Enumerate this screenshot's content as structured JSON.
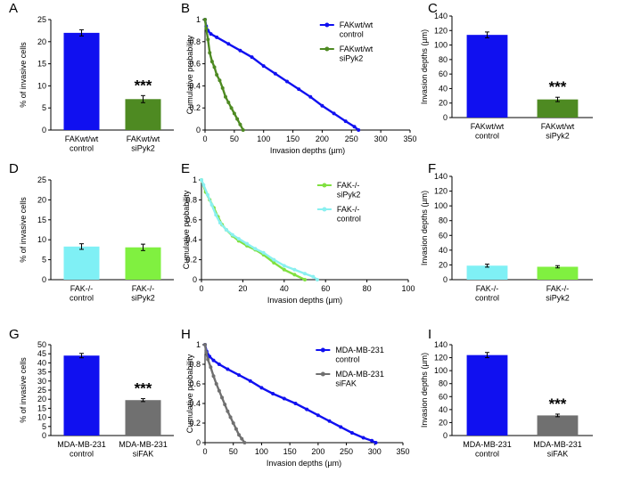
{
  "chart_data": [
    {
      "panel": "A",
      "type": "bar",
      "ylabel": "% of invasive cells",
      "ylim": [
        0,
        25
      ],
      "yticks": [
        0,
        5,
        10,
        15,
        20,
        25
      ],
      "categories": [
        "FAKwt/wt\ncontrol",
        "FAKwt/wt\nsiPyk2"
      ],
      "values": [
        22,
        7
      ],
      "errors": [
        0.7,
        0.8
      ],
      "colors": [
        "#1010f0",
        "#4e8a22"
      ],
      "sig": [
        "",
        "***"
      ]
    },
    {
      "panel": "B",
      "type": "line",
      "xlabel": "Invasion depths (µm)",
      "ylabel": "Cumulative probability",
      "xlim": [
        0,
        350
      ],
      "xticks": [
        0,
        50,
        100,
        150,
        200,
        250,
        300,
        350
      ],
      "ylim": [
        0,
        1
      ],
      "yticks": [
        0,
        0.2,
        0.4,
        0.6,
        0.8,
        1
      ],
      "series": [
        {
          "name": "FAKwt/wt\ncontrol",
          "color": "#1010f0",
          "x": [
            0,
            2,
            5,
            10,
            20,
            40,
            60,
            80,
            100,
            120,
            140,
            160,
            180,
            200,
            220,
            240,
            255,
            262
          ],
          "y": [
            1,
            0.94,
            0.9,
            0.87,
            0.84,
            0.78,
            0.72,
            0.66,
            0.58,
            0.51,
            0.44,
            0.37,
            0.3,
            0.22,
            0.15,
            0.08,
            0.03,
            0
          ]
        },
        {
          "name": "FAKwt/wt\nsiPyk2",
          "color": "#4e8a22",
          "x": [
            0,
            2,
            5,
            8,
            12,
            16,
            20,
            25,
            30,
            35,
            40,
            45,
            50,
            55,
            60,
            65
          ],
          "y": [
            1,
            0.92,
            0.82,
            0.7,
            0.62,
            0.57,
            0.5,
            0.45,
            0.38,
            0.3,
            0.25,
            0.2,
            0.15,
            0.1,
            0.05,
            0
          ]
        }
      ],
      "legend": "top-right"
    },
    {
      "panel": "C",
      "type": "bar",
      "ylabel": "Invasion depths (µm)",
      "ylim": [
        0,
        140
      ],
      "yticks": [
        0,
        20,
        40,
        60,
        80,
        100,
        120,
        140
      ],
      "categories": [
        "FAKwt/wt\ncontrol",
        "FAKwt/wt\nsiPyk2"
      ],
      "values": [
        114,
        25
      ],
      "errors": [
        4,
        3
      ],
      "colors": [
        "#1010f0",
        "#4e8a22"
      ],
      "sig": [
        "",
        "***"
      ]
    },
    {
      "panel": "D",
      "type": "bar",
      "ylabel": "% of invasive cells",
      "ylim": [
        0,
        25
      ],
      "yticks": [
        0,
        5,
        10,
        15,
        20,
        25
      ],
      "categories": [
        "FAK-/-\ncontrol",
        "FAK-/-\nsiPyk2"
      ],
      "values": [
        8.3,
        8.1
      ],
      "errors": [
        0.7,
        0.8
      ],
      "colors": [
        "#7ff0f5",
        "#80f040"
      ],
      "sig": [
        "",
        ""
      ]
    },
    {
      "panel": "E",
      "type": "line",
      "xlabel": "Invasion depths (µm)",
      "ylabel": "Cumulative probability",
      "xlim": [
        0,
        100
      ],
      "xticks": [
        0,
        20,
        40,
        60,
        80,
        100
      ],
      "ylim": [
        0,
        1
      ],
      "yticks": [
        0,
        0.2,
        0.4,
        0.6,
        0.8,
        1
      ],
      "series": [
        {
          "name": "FAK-/-\nsiPyk2",
          "color": "#80e040",
          "x": [
            0,
            2,
            4,
            6,
            8,
            10,
            12,
            15,
            18,
            22,
            26,
            30,
            35,
            40,
            45,
            50
          ],
          "y": [
            1,
            0.88,
            0.8,
            0.72,
            0.63,
            0.55,
            0.5,
            0.44,
            0.39,
            0.34,
            0.3,
            0.25,
            0.17,
            0.1,
            0.05,
            0
          ]
        },
        {
          "name": "FAK-/-\ncontrol",
          "color": "#8af0f0",
          "x": [
            0,
            1,
            3,
            5,
            7,
            9,
            12,
            15,
            18,
            22,
            26,
            30,
            35,
            40,
            45,
            50,
            54,
            56
          ],
          "y": [
            1,
            0.95,
            0.85,
            0.75,
            0.65,
            0.57,
            0.5,
            0.45,
            0.41,
            0.36,
            0.31,
            0.27,
            0.2,
            0.14,
            0.1,
            0.06,
            0.03,
            0
          ]
        }
      ],
      "legend": "top-right"
    },
    {
      "panel": "F",
      "type": "bar",
      "ylabel": "Invasion depths (µm)",
      "ylim": [
        0,
        140
      ],
      "yticks": [
        0,
        20,
        40,
        60,
        80,
        100,
        120,
        140
      ],
      "categories": [
        "FAK-/-\ncontrol",
        "FAK-/-\nsiPyk2"
      ],
      "values": [
        19,
        17.5
      ],
      "errors": [
        2,
        1.5
      ],
      "colors": [
        "#7ff0f5",
        "#80f040"
      ],
      "sig": [
        "",
        ""
      ]
    },
    {
      "panel": "G",
      "type": "bar",
      "ylabel": "% of invasive cells",
      "ylim": [
        0,
        50
      ],
      "yticks": [
        0,
        5,
        10,
        15,
        20,
        25,
        30,
        35,
        40,
        45,
        50
      ],
      "categories": [
        "MDA-MB-231\ncontrol",
        "MDA-MB-231\nsiFAK"
      ],
      "values": [
        44,
        19.5
      ],
      "errors": [
        1.2,
        0.8
      ],
      "colors": [
        "#1010f0",
        "#707070"
      ],
      "sig": [
        "",
        "***"
      ]
    },
    {
      "panel": "H",
      "type": "line",
      "xlabel": "Invasion depths (µm)",
      "ylabel": "Cumulative probability",
      "xlim": [
        0,
        350
      ],
      "xticks": [
        0,
        50,
        100,
        150,
        200,
        250,
        300,
        350
      ],
      "ylim": [
        0,
        1
      ],
      "yticks": [
        0,
        0.2,
        0.4,
        0.6,
        0.8,
        1
      ],
      "series": [
        {
          "name": "MDA-MB-231\ncontrol",
          "color": "#1010f0",
          "x": [
            0,
            3,
            8,
            15,
            25,
            40,
            60,
            80,
            100,
            120,
            140,
            160,
            180,
            200,
            220,
            240,
            260,
            280,
            295,
            302
          ],
          "y": [
            1,
            0.93,
            0.88,
            0.84,
            0.8,
            0.75,
            0.69,
            0.63,
            0.56,
            0.5,
            0.45,
            0.4,
            0.34,
            0.28,
            0.22,
            0.16,
            0.1,
            0.05,
            0.02,
            0
          ]
        },
        {
          "name": "MDA-MB-231\nsiFAK",
          "color": "#707070",
          "x": [
            0,
            2,
            5,
            10,
            15,
            20,
            25,
            30,
            35,
            40,
            45,
            50,
            55,
            60,
            65,
            70
          ],
          "y": [
            1,
            0.92,
            0.85,
            0.77,
            0.68,
            0.6,
            0.53,
            0.46,
            0.39,
            0.32,
            0.26,
            0.2,
            0.14,
            0.08,
            0.04,
            0
          ]
        }
      ],
      "legend": "top-right"
    },
    {
      "panel": "I",
      "type": "bar",
      "ylabel": "Invasion depths (µm)",
      "ylim": [
        0,
        140
      ],
      "yticks": [
        0,
        20,
        40,
        60,
        80,
        100,
        120,
        140
      ],
      "categories": [
        "MDA-MB-231\ncontrol",
        "MDA-MB-231\nsiFAK"
      ],
      "values": [
        124,
        31
      ],
      "errors": [
        4,
        2
      ],
      "colors": [
        "#1010f0",
        "#707070"
      ],
      "sig": [
        "",
        "***"
      ]
    }
  ]
}
